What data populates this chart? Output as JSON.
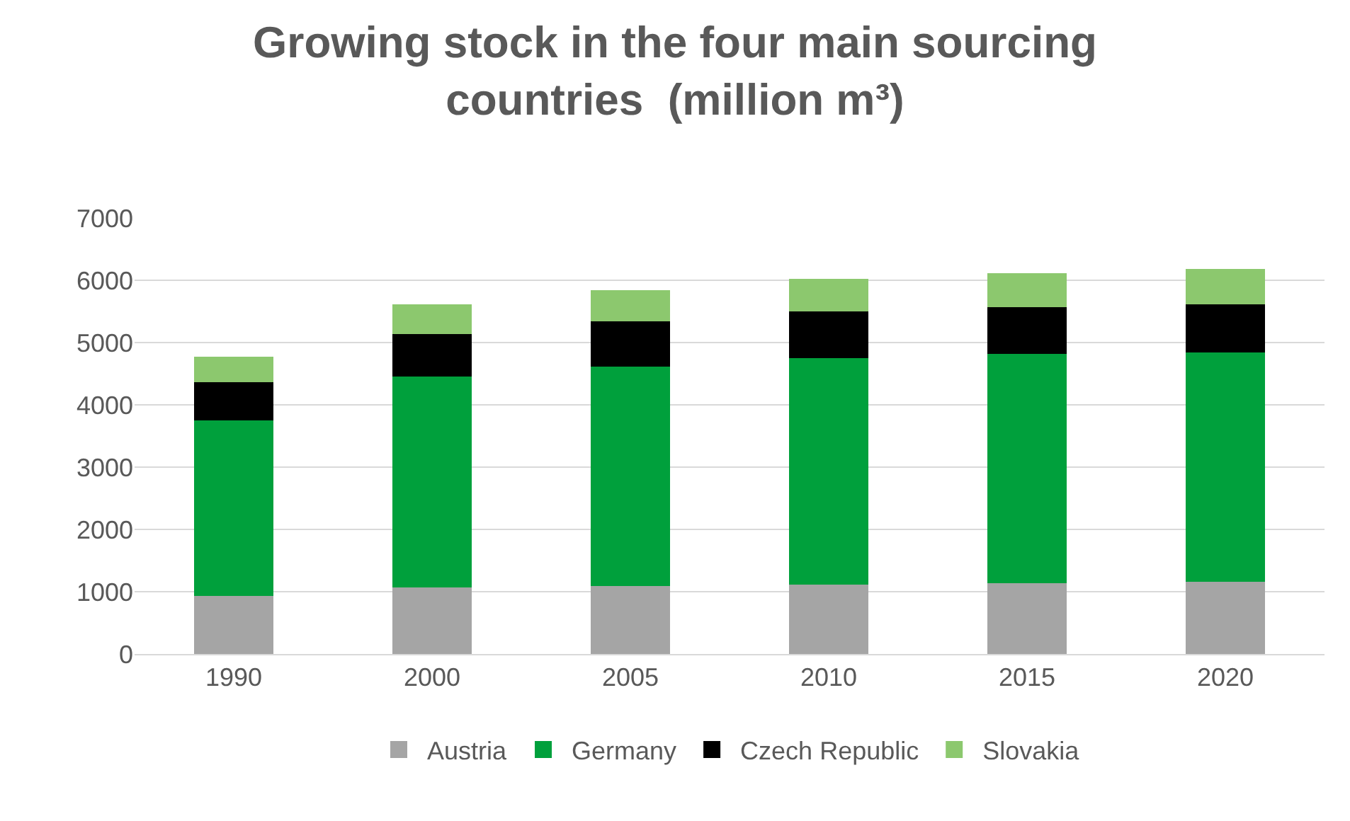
{
  "chart_data": {
    "type": "bar",
    "title": "Growing stock in the four main sourcing countries  (million m³)",
    "categories": [
      "1990",
      "2000",
      "2005",
      "2010",
      "2015",
      "2020"
    ],
    "stacked": true,
    "series": [
      {
        "name": "Austria",
        "color": "#a5a5a5",
        "values": [
          930,
          1070,
          1090,
          1110,
          1140,
          1160
        ]
      },
      {
        "name": "Germany",
        "color": "#00a03c",
        "values": [
          2820,
          3380,
          3520,
          3640,
          3680,
          3680
        ]
      },
      {
        "name": "Czech Republic",
        "color": "#000000",
        "values": [
          610,
          690,
          730,
          750,
          750,
          770
        ]
      },
      {
        "name": "Slovakia",
        "color": "#8cc86e",
        "values": [
          410,
          470,
          500,
          520,
          540,
          570
        ]
      }
    ],
    "ylim": [
      0,
      7000
    ],
    "yticks": [
      0,
      1000,
      2000,
      3000,
      4000,
      5000,
      6000,
      7000
    ],
    "grid": "y",
    "legend": "bottom"
  }
}
